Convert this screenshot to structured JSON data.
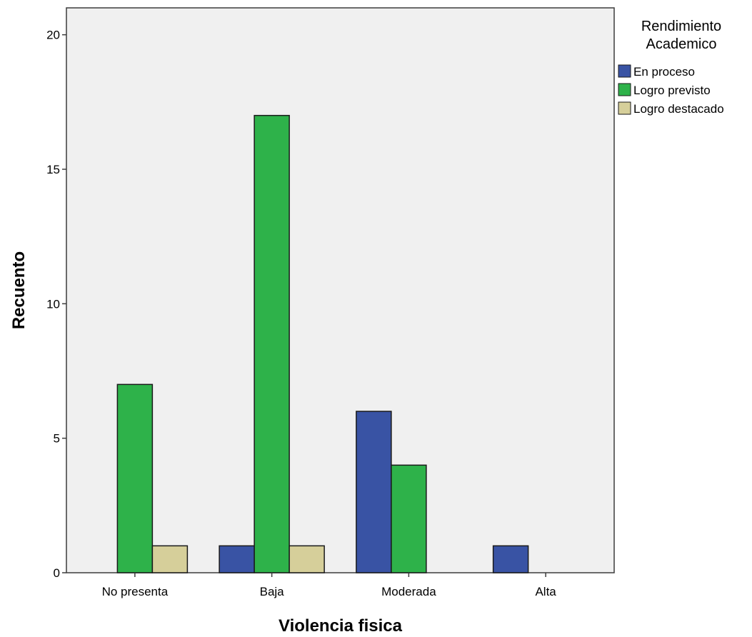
{
  "chart_data": {
    "type": "bar",
    "title": "",
    "xlabel": "Violencia fisica",
    "ylabel": "Recuento",
    "categories": [
      "No presenta",
      "Baja",
      "Moderada",
      "Alta"
    ],
    "series": [
      {
        "name": "En proceso",
        "values": [
          0,
          1,
          6,
          1
        ],
        "color": "#3953a4"
      },
      {
        "name": "Logro previsto",
        "values": [
          7,
          17,
          4,
          0
        ],
        "color": "#2eb24a"
      },
      {
        "name": "Logro destacado",
        "values": [
          1,
          1,
          0,
          0
        ],
        "color": "#d6cf9a"
      }
    ],
    "ylim": [
      0,
      21
    ],
    "yticks": [
      0,
      5,
      10,
      15,
      20
    ],
    "legend_title": [
      "Rendimiento",
      "Academico"
    ],
    "legend_position": "top-right",
    "plot_background": "#f0f0f0",
    "grid": false
  }
}
